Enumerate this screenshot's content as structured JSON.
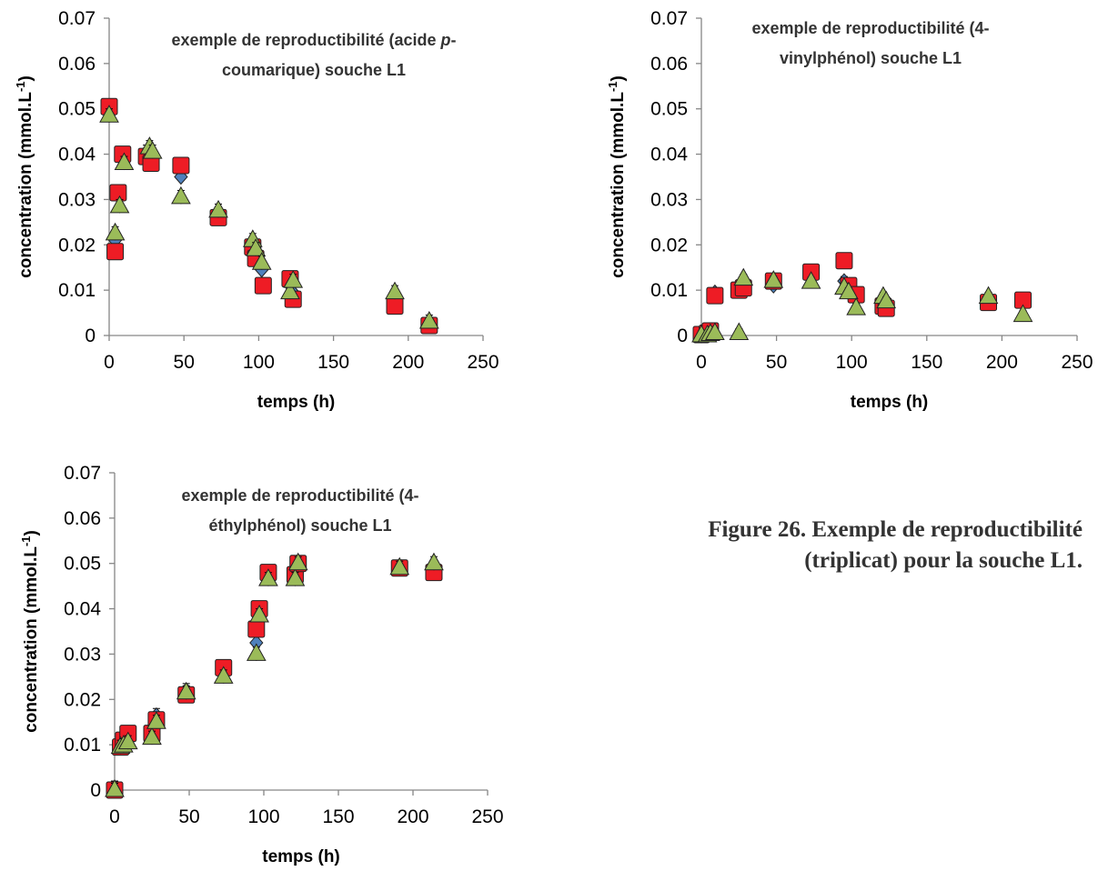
{
  "caption": {
    "line1": "Figure 26. Exemple de reproductibilité",
    "line2": "(triplicat) pour la souche L1."
  },
  "colors": {
    "series_diamond": "#4f81bd",
    "series_square": "#ee1c25",
    "series_triangle": "#9bbb59",
    "axis": "#868686"
  },
  "chart_data": [
    {
      "type": "scatter",
      "title_lines": [
        [
          {
            "text": "exemple de reproductibilité (acide "
          },
          {
            "text": "p",
            "italic": true
          },
          {
            "text": "-"
          }
        ],
        [
          {
            "text": "coumarique) souche L1"
          }
        ]
      ],
      "xlabel": "temps (h)",
      "ylabel": "concentration (mmol.L",
      "ylabel_sup": "-1",
      "ylabel_end": ")",
      "xlim": [
        0,
        250
      ],
      "ylim": [
        0,
        0.07
      ],
      "xticks": [
        0,
        50,
        100,
        150,
        200,
        250
      ],
      "yticks": [
        0,
        0.01,
        0.02,
        0.03,
        0.04,
        0.05,
        0.06,
        0.07
      ],
      "ytick_labels": [
        "0",
        "0.01",
        "0.02",
        "0.03",
        "0.04",
        "0.05",
        "0.06",
        "0.07"
      ],
      "grid": false,
      "series": [
        {
          "marker": "diamond",
          "points": [
            [
              0,
              0.0505
            ],
            [
              4,
              0.021
            ],
            [
              6,
              0.031
            ],
            [
              9,
              0.0395
            ],
            [
              25,
              0.0405
            ],
            [
              28,
              0.0395
            ],
            [
              48,
              0.035
            ],
            [
              73,
              0.0265
            ],
            [
              96,
              0.0195
            ],
            [
              98,
              0.0175
            ],
            [
              102,
              0.0145
            ],
            [
              121,
              0.011
            ],
            [
              123,
              0.0095
            ],
            [
              191,
              0.007
            ],
            [
              214,
              0.0025
            ]
          ],
          "err": 0.0015
        },
        {
          "marker": "square",
          "points": [
            [
              0,
              0.0505
            ],
            [
              4,
              0.0185
            ],
            [
              6,
              0.0315
            ],
            [
              9,
              0.04
            ],
            [
              25,
              0.0395
            ],
            [
              28,
              0.038
            ],
            [
              48,
              0.0375
            ],
            [
              73,
              0.026
            ],
            [
              96,
              0.0195
            ],
            [
              98,
              0.017
            ],
            [
              103,
              0.011
            ],
            [
              121,
              0.0125
            ],
            [
              123,
              0.008
            ],
            [
              191,
              0.0065
            ],
            [
              214,
              0.0022
            ]
          ],
          "err": 0.0015
        },
        {
          "marker": "triangle",
          "points": [
            [
              0,
              0.0485
            ],
            [
              4,
              0.0225
            ],
            [
              7,
              0.0285
            ],
            [
              10,
              0.038
            ],
            [
              27,
              0.0415
            ],
            [
              29,
              0.0405
            ],
            [
              48,
              0.0305
            ],
            [
              73,
              0.0275
            ],
            [
              96,
              0.021
            ],
            [
              98,
              0.019
            ],
            [
              102,
              0.016
            ],
            [
              121,
              0.0095
            ],
            [
              123,
              0.012
            ],
            [
              191,
              0.0095
            ],
            [
              214,
              0.003
            ]
          ],
          "err": 0.0015
        }
      ]
    },
    {
      "type": "scatter",
      "title_lines": [
        [
          {
            "text": "exemple de reproductibilité (4-"
          }
        ],
        [
          {
            "text": "vinylphénol) souche L1"
          }
        ]
      ],
      "xlabel": "temps (h)",
      "ylabel": "concentration (mmol.L",
      "ylabel_sup": "-1",
      "ylabel_end": ")",
      "xlim": [
        0,
        250
      ],
      "ylim": [
        0,
        0.07
      ],
      "xticks": [
        0,
        50,
        100,
        150,
        200,
        250
      ],
      "yticks": [
        0,
        0.01,
        0.02,
        0.03,
        0.04,
        0.05,
        0.06,
        0.07
      ],
      "ytick_labels": [
        "0",
        "0.01",
        "0.02",
        "0.03",
        "0.04",
        "0.05",
        "0.06",
        "0.07"
      ],
      "grid": false,
      "series": [
        {
          "marker": "diamond",
          "points": [
            [
              0,
              0
            ],
            [
              4,
              0.0005
            ],
            [
              6,
              0.0008
            ],
            [
              9,
              0.0095
            ],
            [
              25,
              0.0105
            ],
            [
              28,
              0.011
            ],
            [
              48,
              0.011
            ],
            [
              73,
              0.0135
            ],
            [
              95,
              0.012
            ],
            [
              98,
              0.0105
            ],
            [
              103,
              0.0085
            ],
            [
              121,
              0.008
            ],
            [
              123,
              0.0065
            ],
            [
              191,
              0.0075
            ],
            [
              214,
              0.0075
            ]
          ],
          "err": 0.001
        },
        {
          "marker": "square",
          "points": [
            [
              0,
              0.0002
            ],
            [
              4,
              0.0005
            ],
            [
              6,
              0.001
            ],
            [
              9,
              0.0088
            ],
            [
              25,
              0.01
            ],
            [
              28,
              0.0105
            ],
            [
              48,
              0.012
            ],
            [
              73,
              0.014
            ],
            [
              95,
              0.0165
            ],
            [
              98,
              0.011
            ],
            [
              103,
              0.009
            ],
            [
              121,
              0.0065
            ],
            [
              123,
              0.006
            ],
            [
              191,
              0.0073
            ],
            [
              214,
              0.0078
            ]
          ],
          "err": 0.001
        },
        {
          "marker": "triangle",
          "points": [
            [
              0,
              0
            ],
            [
              4,
              0
            ],
            [
              6,
              0.0003
            ],
            [
              9,
              0.0005
            ],
            [
              25,
              0.0005
            ],
            [
              28,
              0.0125
            ],
            [
              48,
              0.012
            ],
            [
              73,
              0.0118
            ],
            [
              95,
              0.0105
            ],
            [
              98,
              0.0095
            ],
            [
              103,
              0.006
            ],
            [
              121,
              0.0085
            ],
            [
              123,
              0.0075
            ],
            [
              191,
              0.0085
            ],
            [
              214,
              0.0045
            ]
          ],
          "err": 0.001
        }
      ]
    },
    {
      "type": "scatter",
      "title_lines": [
        [
          {
            "text": "exemple de reproductibilité (4-"
          }
        ],
        [
          {
            "text": "éthylphénol) souche L1"
          }
        ]
      ],
      "xlabel": "temps (h)",
      "ylabel": "concentration (mmol.L",
      "ylabel_sup": "-1",
      "ylabel_end": ")",
      "xlim": [
        0,
        250
      ],
      "ylim": [
        0,
        0.07
      ],
      "xticks": [
        0,
        50,
        100,
        150,
        200,
        250
      ],
      "yticks": [
        0,
        0.01,
        0.02,
        0.03,
        0.04,
        0.05,
        0.06,
        0.07
      ],
      "ytick_labels": [
        "0",
        "0.01",
        "0.02",
        "0.03",
        "0.04",
        "0.05",
        "0.06",
        "0.07"
      ],
      "grid": false,
      "series": [
        {
          "marker": "diamond",
          "points": [
            [
              0,
              0.0005
            ],
            [
              4,
              0.0095
            ],
            [
              6,
              0.0105
            ],
            [
              9,
              0.012
            ],
            [
              25,
              0.0125
            ],
            [
              28,
              0.0165
            ],
            [
              48,
              0.022
            ],
            [
              73,
              0.0265
            ],
            [
              95,
              0.0325
            ],
            [
              97,
              0.039
            ],
            [
              103,
              0.0475
            ],
            [
              121,
              0.048
            ],
            [
              123,
              0.0495
            ],
            [
              191,
              0.049
            ],
            [
              214,
              0.0485
            ]
          ],
          "err": 0.0015
        },
        {
          "marker": "square",
          "points": [
            [
              0,
              0
            ],
            [
              4,
              0.0095
            ],
            [
              6,
              0.011
            ],
            [
              9,
              0.0125
            ],
            [
              25,
              0.0125
            ],
            [
              28,
              0.0155
            ],
            [
              48,
              0.021
            ],
            [
              73,
              0.027
            ],
            [
              95,
              0.0355
            ],
            [
              97,
              0.04
            ],
            [
              103,
              0.048
            ],
            [
              121,
              0.0475
            ],
            [
              123,
              0.05
            ],
            [
              191,
              0.049
            ],
            [
              214,
              0.048
            ]
          ],
          "err": 0.0015
        },
        {
          "marker": "triangle",
          "points": [
            [
              0,
              0
            ],
            [
              4,
              0.0095
            ],
            [
              6,
              0.0098
            ],
            [
              9,
              0.0105
            ],
            [
              25,
              0.0115
            ],
            [
              28,
              0.015
            ],
            [
              48,
              0.0215
            ],
            [
              73,
              0.025
            ],
            [
              95,
              0.03
            ],
            [
              97,
              0.0385
            ],
            [
              103,
              0.0465
            ],
            [
              121,
              0.0465
            ],
            [
              123,
              0.05
            ],
            [
              191,
              0.049
            ],
            [
              214,
              0.05
            ]
          ],
          "err": 0.0015
        }
      ]
    }
  ]
}
